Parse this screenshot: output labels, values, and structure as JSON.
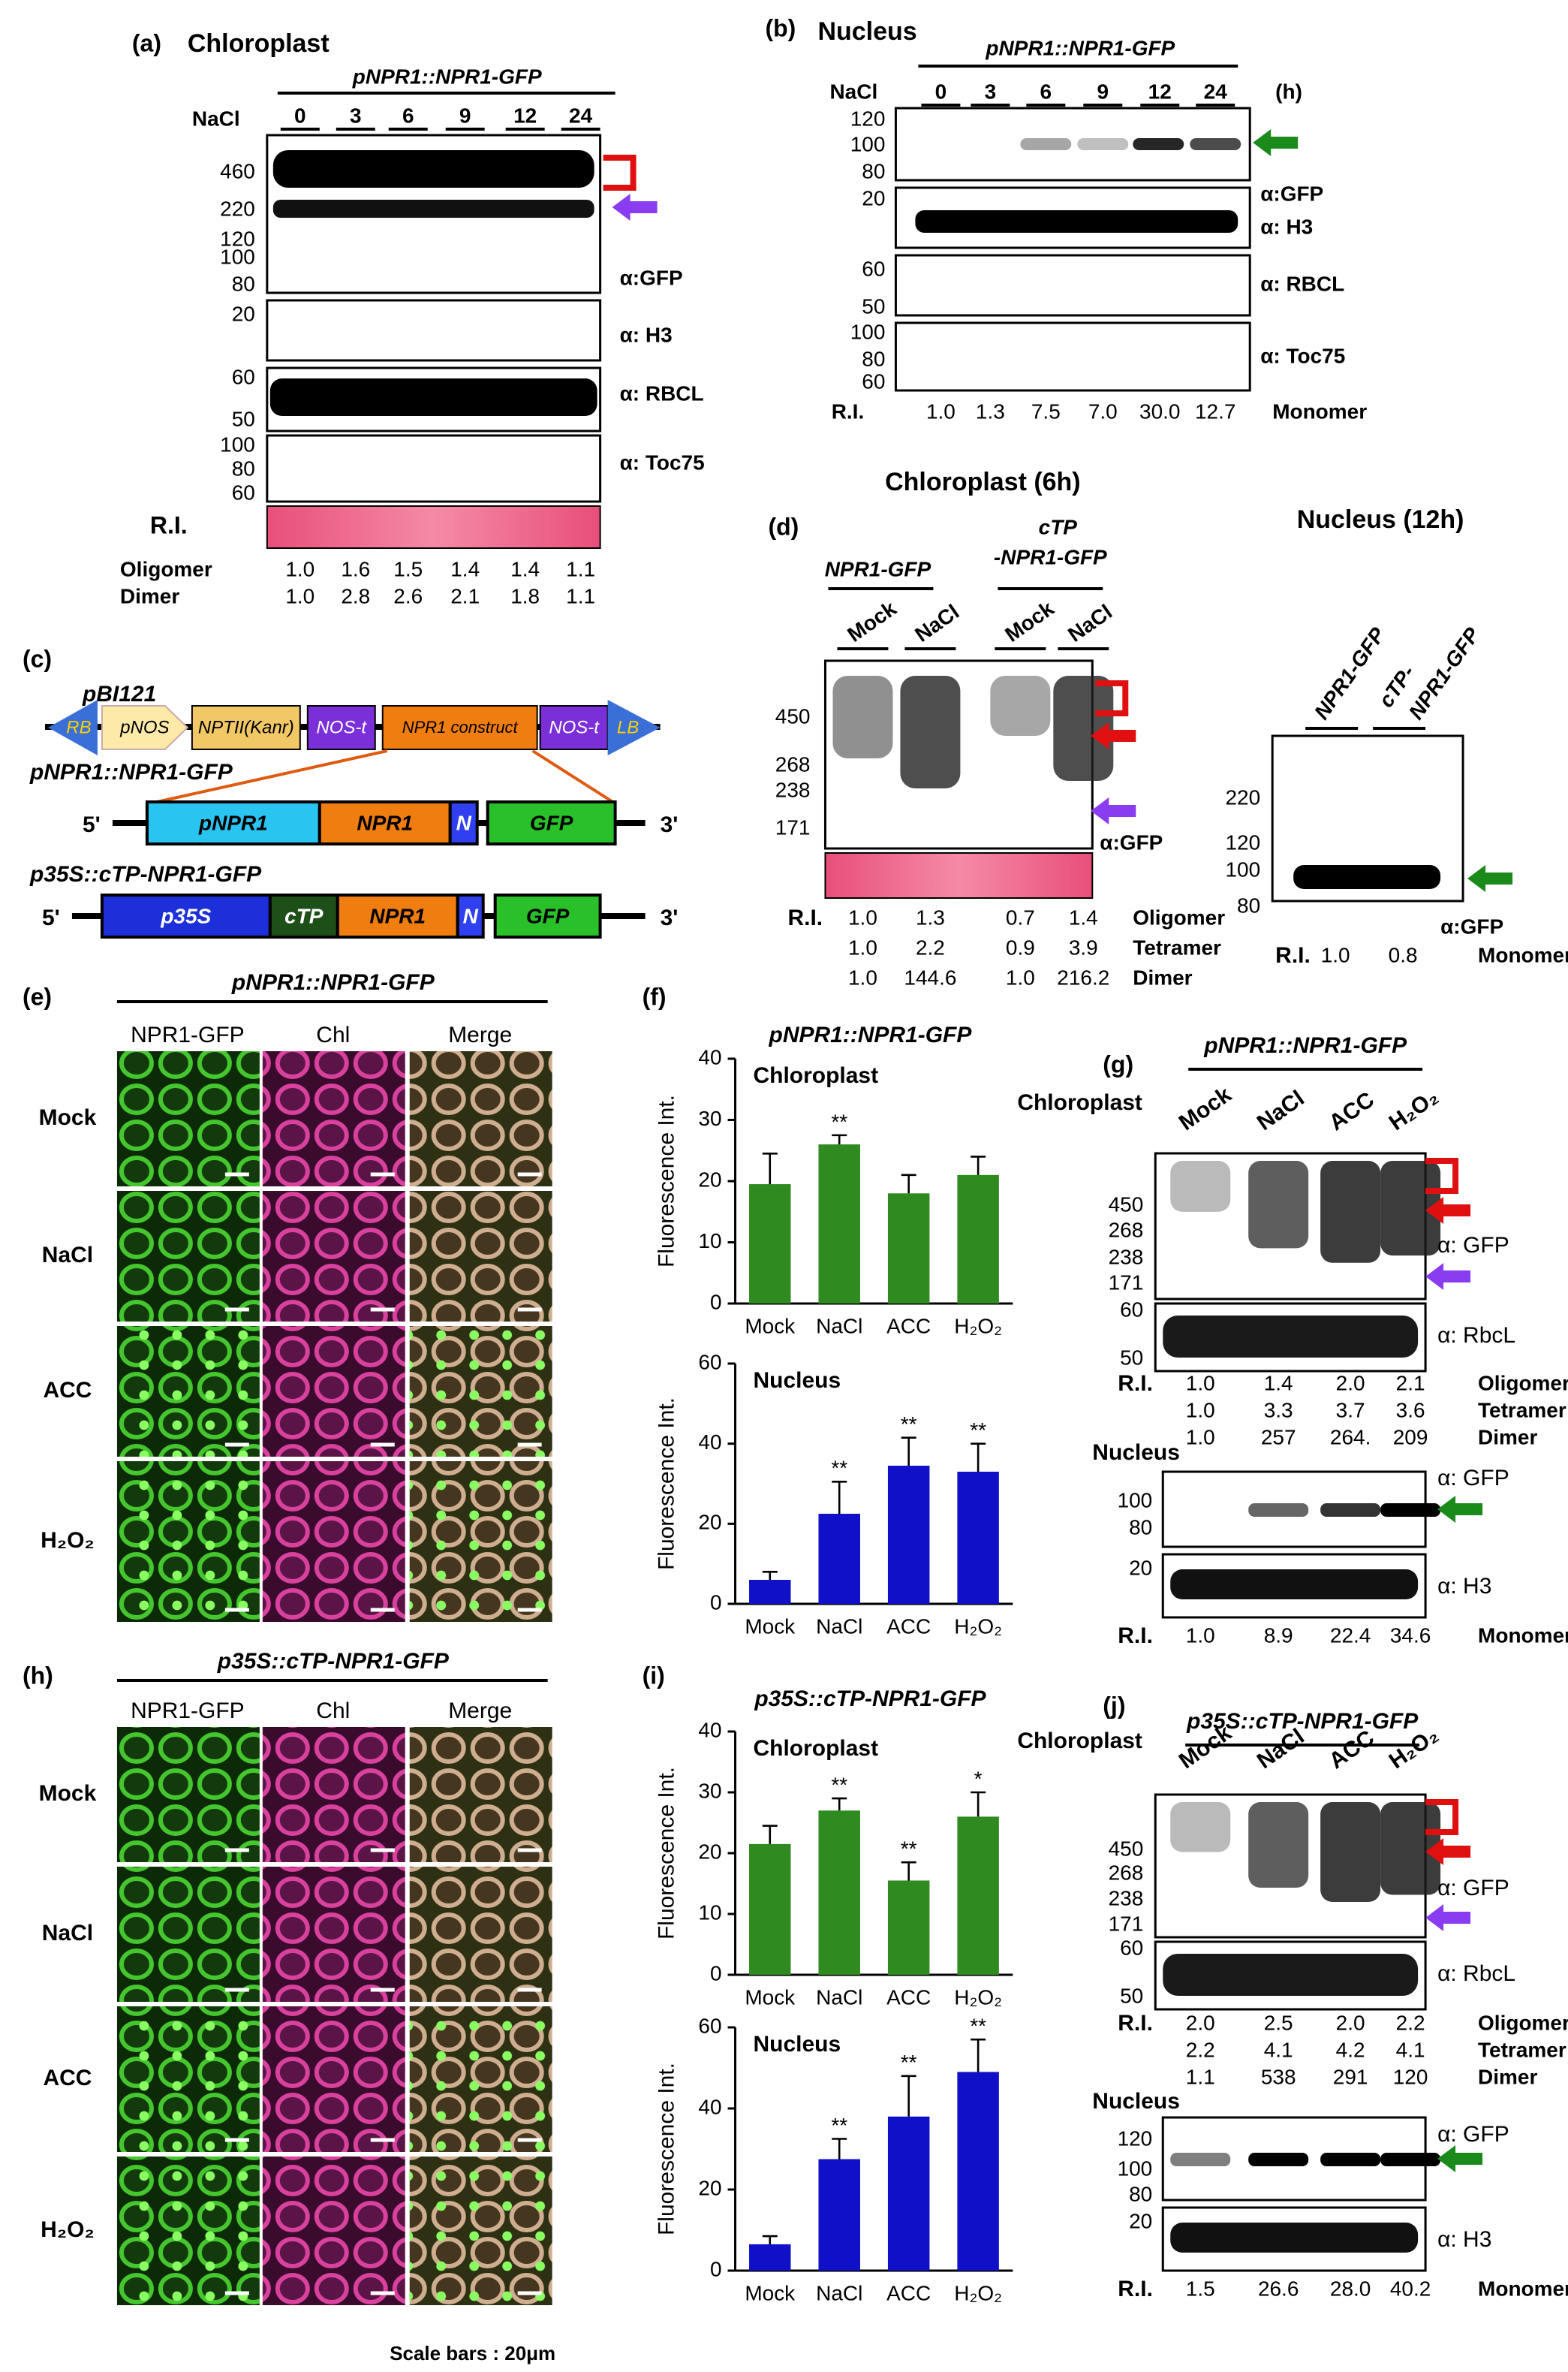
{
  "a": {
    "label": "(a)",
    "title": "Chloroplast",
    "construct": "pNPR1::NPR1-GFP",
    "treatment": "NaCl",
    "lanes": [
      "0",
      "3",
      "6",
      "9",
      "12",
      "24"
    ],
    "markers": {
      "gfp": [
        "460",
        "220",
        "120",
        "100",
        "80"
      ],
      "h3": [
        "20"
      ],
      "rbcl": [
        "60",
        "50"
      ],
      "toc75": [
        "100",
        "80",
        "60"
      ]
    },
    "antibodies": [
      "α:GFP",
      "α: H3",
      "α: RBCL",
      "α: Toc75"
    ],
    "ri_label": "R.I.",
    "ri_rows": [
      {
        "name": "Oligomer",
        "values": [
          "1.0",
          "1.6",
          "1.5",
          "1.4",
          "1.4",
          "1.1"
        ]
      },
      {
        "name": "Dimer",
        "values": [
          "1.0",
          "2.8",
          "2.6",
          "2.1",
          "1.8",
          "1.1"
        ]
      }
    ]
  },
  "b": {
    "label": "(b)",
    "title": "Nucleus",
    "construct": "pNPR1::NPR1-GFP",
    "treatment": "NaCl",
    "unit": "(h)",
    "lanes": [
      "0",
      "3",
      "6",
      "9",
      "12",
      "24"
    ],
    "markers": {
      "gfp": [
        "120",
        "100",
        "80"
      ],
      "h3": [
        "20"
      ],
      "rbcl": [
        "60",
        "50"
      ],
      "toc75": [
        "100",
        "80",
        "60"
      ]
    },
    "antibodies": [
      "α:GFP",
      "α: H3",
      "α: RBCL",
      "α: Toc75"
    ],
    "ri_label": "R.I.",
    "ri_rows": [
      {
        "name": "Monomer",
        "values": [
          "1.0",
          "1.3",
          "7.5",
          "7.0",
          "30.0",
          "12.7"
        ]
      }
    ]
  },
  "c": {
    "label": "(c)",
    "vector": "pBI121",
    "vector_parts": [
      "RB",
      "pNOS",
      "NPTII(Kanr)",
      "NOS-t",
      "NPR1 construct",
      "NOS-t",
      "LB"
    ],
    "constructs": [
      {
        "name": "pNPR1::NPR1-GFP",
        "ends": [
          "5'",
          "3'"
        ],
        "parts": [
          "pNPR1",
          "NPR1",
          "N",
          "GFP"
        ]
      },
      {
        "name": "p35S::cTP-NPR1-GFP",
        "ends": [
          "5'",
          "3'"
        ],
        "parts": [
          "p35S",
          "cTP",
          "NPR1",
          "N",
          "GFP"
        ]
      }
    ]
  },
  "d": {
    "label": "(d)",
    "title": "Chloroplast (6h)",
    "groups": [
      [
        "NPR1-GFP"
      ],
      [
        "cTP",
        "-NPR1-GFP"
      ]
    ],
    "lanes": [
      "Mock",
      "NaCl",
      "Mock",
      "NaCl"
    ],
    "markers": [
      "450",
      "268",
      "238",
      "171"
    ],
    "antibody": "α:GFP",
    "ri_label": "R.I.",
    "ri_rows": [
      {
        "name": "Oligomer",
        "values": [
          "1.0",
          "1.3",
          "0.7",
          "1.4"
        ]
      },
      {
        "name": "Tetramer",
        "values": [
          "1.0",
          "2.2",
          "0.9",
          "3.9"
        ]
      },
      {
        "name": "Dimer",
        "values": [
          "1.0",
          "144.6",
          "1.0",
          "216.2"
        ]
      }
    ]
  },
  "d_nucleus": {
    "title": "Nucleus (12h)",
    "lanes": [
      [
        "NPR1-GFP"
      ],
      [
        "cTP-",
        "NPR1-GFP"
      ]
    ],
    "markers": [
      "220",
      "120",
      "100",
      "80"
    ],
    "antibody": "α:GFP",
    "ri_label": "R.I.",
    "ri_rows": [
      {
        "name": "Monomer",
        "values": [
          "1.0",
          "0.8"
        ]
      }
    ]
  },
  "e": {
    "label": "(e)",
    "title": "pNPR1::NPR1-GFP",
    "columns": [
      "NPR1-GFP",
      "Chl",
      "Merge"
    ],
    "rows": [
      "Mock",
      "NaCl",
      "ACC",
      "H₂O₂"
    ]
  },
  "h": {
    "label": "(h)",
    "title": "p35S::cTP-NPR1-GFP",
    "columns": [
      "NPR1-GFP",
      "Chl",
      "Merge"
    ],
    "rows": [
      "Mock",
      "NaCl",
      "ACC",
      "H₂O₂"
    ],
    "scale_note": "Scale bars : 20μm"
  },
  "f": {
    "label": "(f)",
    "title": "pNPR1::NPR1-GFP",
    "charts": [
      {
        "type": "bar",
        "title": "Chloroplast",
        "ylabel": "Fluorescence Int.",
        "categories": [
          "Mock",
          "NaCl",
          "ACC",
          "H₂O₂"
        ],
        "values": [
          19.5,
          26,
          18,
          21
        ],
        "errors": [
          5,
          1.5,
          3,
          3
        ],
        "significance": [
          null,
          "**",
          null,
          null
        ],
        "color": "#2f8a1f",
        "ylim": [
          0,
          40
        ],
        "yticks": [
          0,
          10,
          20,
          30,
          40
        ]
      },
      {
        "type": "bar",
        "title": "Nucleus",
        "ylabel": "Fluorescence Int.",
        "categories": [
          "Mock",
          "NaCl",
          "ACC",
          "H₂O₂"
        ],
        "values": [
          6,
          22.5,
          34.5,
          33
        ],
        "errors": [
          2,
          8,
          7,
          7
        ],
        "significance": [
          null,
          "**",
          "**",
          "**"
        ],
        "color": "#1010c8",
        "ylim": [
          0,
          60
        ],
        "yticks": [
          0,
          20,
          40,
          60
        ]
      }
    ]
  },
  "i": {
    "label": "(i)",
    "title": "p35S::cTP-NPR1-GFP",
    "charts": [
      {
        "type": "bar",
        "title": "Chloroplast",
        "ylabel": "Fluorescence Int.",
        "categories": [
          "Mock",
          "NaCl",
          "ACC",
          "H₂O₂"
        ],
        "values": [
          21.5,
          27,
          15.5,
          26
        ],
        "errors": [
          3,
          2,
          3,
          4
        ],
        "significance": [
          null,
          "**",
          "**",
          "*"
        ],
        "color": "#2f8a1f",
        "ylim": [
          0,
          40
        ],
        "yticks": [
          0,
          10,
          20,
          30,
          40
        ]
      },
      {
        "type": "bar",
        "title": "Nucleus",
        "ylabel": "Fluorescence Int.",
        "categories": [
          "Mock",
          "NaCl",
          "ACC",
          "H₂O₂"
        ],
        "values": [
          6.5,
          27.5,
          38,
          49
        ],
        "errors": [
          2,
          5,
          10,
          8
        ],
        "significance": [
          null,
          "**",
          "**",
          "**"
        ],
        "color": "#1010c8",
        "ylim": [
          0,
          60
        ],
        "yticks": [
          0,
          20,
          40,
          60
        ]
      }
    ]
  },
  "g": {
    "label": "(g)",
    "title": "pNPR1::NPR1-GFP",
    "chloroplast": {
      "title": "Chloroplast",
      "lanes": [
        "Mock",
        "NaCl",
        "ACC",
        "H₂O₂"
      ],
      "markers": {
        "gfp": [
          "450",
          "268",
          "238",
          "171"
        ],
        "rbcl": [
          "60",
          "50"
        ]
      },
      "antibodies": [
        "α: GFP",
        "α: RbcL"
      ],
      "ri_label": "R.I.",
      "ri_rows": [
        {
          "name": "Oligomer",
          "values": [
            "1.0",
            "1.4",
            "2.0",
            "2.1"
          ]
        },
        {
          "name": "Tetramer",
          "values": [
            "1.0",
            "3.3",
            "3.7",
            "3.6"
          ]
        },
        {
          "name": "Dimer",
          "values": [
            "1.0",
            "257",
            "264.",
            "209"
          ]
        }
      ]
    },
    "nucleus": {
      "title": "Nucleus",
      "markers": {
        "gfp": [
          "100",
          "80"
        ],
        "h3": [
          "20"
        ]
      },
      "antibodies": [
        "α: GFP",
        "α: H3"
      ],
      "ri_label": "R.I.",
      "ri_rows": [
        {
          "name": "Monomer",
          "values": [
            "1.0",
            "8.9",
            "22.4",
            "34.6"
          ]
        }
      ]
    }
  },
  "j": {
    "label": "(j)",
    "title": "p35S::cTP-NPR1-GFP",
    "chloroplast": {
      "title": "Chloroplast",
      "lanes": [
        "Mock",
        "NaCl",
        "ACC",
        "H₂O₂"
      ],
      "markers": {
        "gfp": [
          "450",
          "268",
          "238",
          "171"
        ],
        "rbcl": [
          "60",
          "50"
        ]
      },
      "antibodies": [
        "α: GFP",
        "α: RbcL"
      ],
      "ri_label": "R.I.",
      "ri_rows": [
        {
          "name": "Oligomer",
          "values": [
            "2.0",
            "2.5",
            "2.0",
            "2.2"
          ]
        },
        {
          "name": "Tetramer",
          "values": [
            "2.2",
            "4.1",
            "4.2",
            "4.1"
          ]
        },
        {
          "name": "Dimer",
          "values": [
            "1.1",
            "538",
            "291",
            "120"
          ]
        }
      ]
    },
    "nucleus": {
      "title": "Nucleus",
      "markers": {
        "gfp": [
          "120",
          "100",
          "80"
        ],
        "h3": [
          "20"
        ]
      },
      "antibodies": [
        "α: GFP",
        "α: H3"
      ],
      "ri_label": "R.I.",
      "ri_rows": [
        {
          "name": "Monomer",
          "values": [
            "1.5",
            "26.6",
            "28.0",
            "40.2"
          ]
        }
      ]
    }
  }
}
